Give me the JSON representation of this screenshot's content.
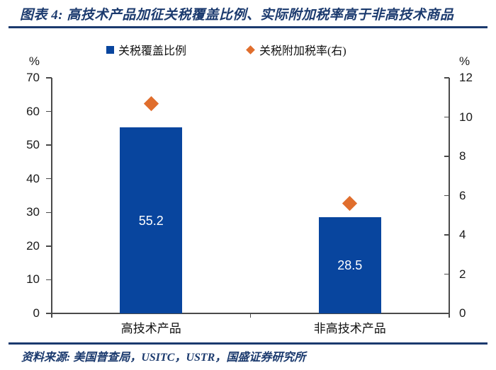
{
  "title": "图表 4: 高技术产品加征关税覆盖比例、实际附加税率高于非高技术商品",
  "footer": "资料来源: 美国普查局，USITC，USTR，国盛证券研究所",
  "colors": {
    "title_navy": "#1b3a6e",
    "bar_blue": "#08459e",
    "diamond_orange": "#e06e2d",
    "axis_gray": "#4a4a4a"
  },
  "chart_data": {
    "type": "bar",
    "categories": [
      "高技术产品",
      "非高技术产品"
    ],
    "series": [
      {
        "name": "关税覆盖比例",
        "type": "bar",
        "axis": "left",
        "marker": "square",
        "color": "#08459e",
        "values": [
          55.2,
          28.5
        ],
        "data_labels": [
          "55.2",
          "28.5"
        ]
      },
      {
        "name": "关税附加税率(右)",
        "type": "scatter",
        "axis": "right",
        "marker": "diamond",
        "color": "#e06e2d",
        "values": [
          10.7,
          5.6
        ]
      }
    ],
    "left_axis": {
      "label": "%",
      "min": 0,
      "max": 70,
      "ticks": [
        0,
        10,
        20,
        30,
        40,
        50,
        60,
        70
      ]
    },
    "right_axis": {
      "label": "%",
      "min": 0,
      "max": 12,
      "ticks": [
        0,
        2,
        4,
        6,
        8,
        10,
        12
      ]
    },
    "grid": false,
    "legend_position": "top"
  }
}
